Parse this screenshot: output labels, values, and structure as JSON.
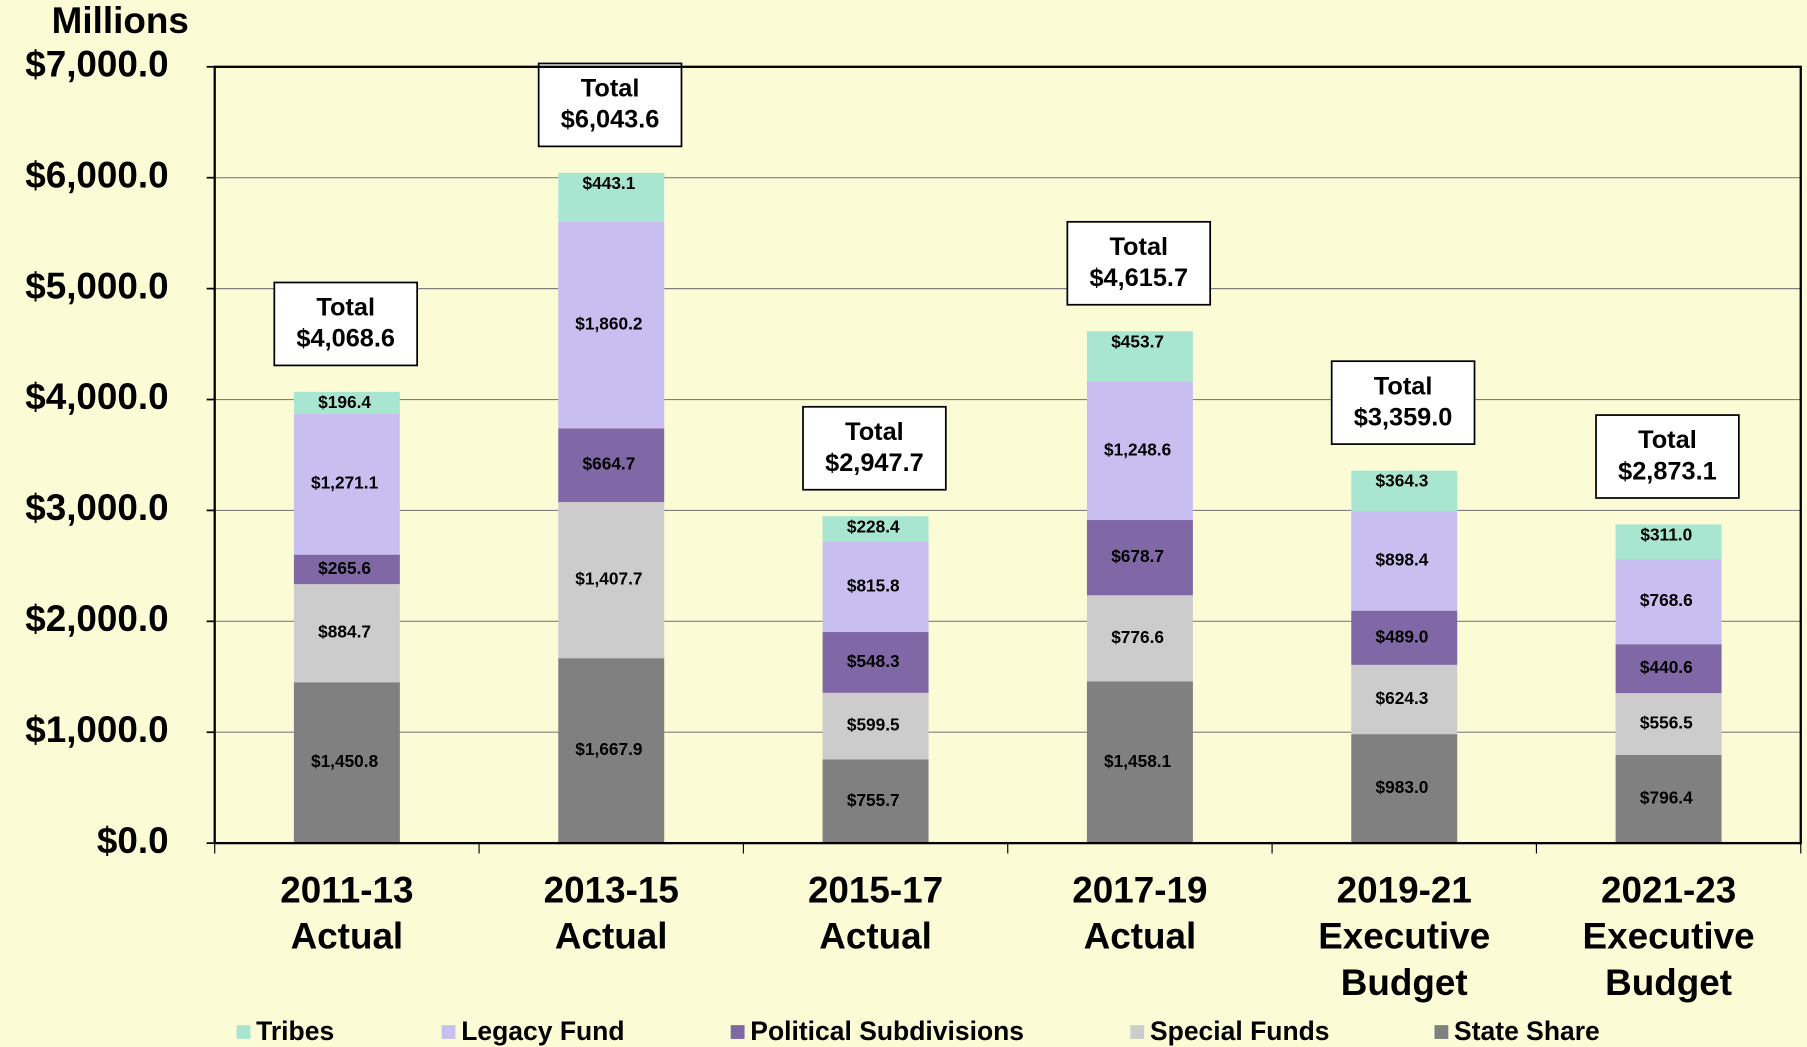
{
  "chart_data": {
    "type": "stacked_bar",
    "ylabel": "Millions",
    "categories": [
      "2011-13 Actual",
      "2013-15 Actual",
      "2015-17 Actual",
      "2017-19 Actual",
      "2019-21 Executive Budget",
      "2021-23 Executive Budget"
    ],
    "series": [
      {
        "name": "Tribes",
        "color": "#a9e6d2",
        "values": [
          196.4,
          443.1,
          228.4,
          453.7,
          364.3,
          311.0
        ],
        "value_labels": [
          "$196.4",
          "$443.1",
          "$228.4",
          "$453.7",
          "$364.3",
          "$311.0"
        ]
      },
      {
        "name": "Legacy Fund",
        "color": "#c8bff0",
        "values": [
          1271.1,
          1860.2,
          815.8,
          1248.6,
          898.4,
          768.6
        ],
        "value_labels": [
          "$1,271.1",
          "$1,860.2",
          "$815.8",
          "$1,248.6",
          "$898.4",
          "$768.6"
        ]
      },
      {
        "name": "Political Subdivisions",
        "color": "#8068a6",
        "values": [
          265.6,
          664.7,
          548.3,
          678.7,
          489.0,
          440.6
        ],
        "value_labels": [
          "$265.6",
          "$664.7",
          "$548.3",
          "$678.7",
          "$489.0",
          "$440.6"
        ]
      },
      {
        "name": "Special Funds",
        "color": "#cccccc",
        "values": [
          884.7,
          1407.7,
          599.5,
          776.6,
          624.3,
          556.5
        ],
        "value_labels": [
          "$884.7",
          "$1,407.7",
          "$599.5",
          "$776.6",
          "$624.3",
          "$556.5"
        ]
      },
      {
        "name": "State Share",
        "color": "#808080",
        "values": [
          1450.8,
          1667.9,
          755.7,
          1458.1,
          983.0,
          796.4
        ],
        "value_labels": [
          "$1,450.8",
          "$1,667.9",
          "$755.7",
          "$1,458.1",
          "$983.0",
          "$796.4"
        ]
      }
    ],
    "total_title": "Total",
    "totals": [
      4068.6,
      6043.6,
      2947.7,
      4615.7,
      3359.0,
      2873.1
    ],
    "total_labels": [
      "$4,068.6",
      "$6,043.6",
      "$2,947.7",
      "$4,615.7",
      "$3,359.0",
      "$2,873.1"
    ],
    "ylim": [
      0,
      7000
    ],
    "yticks": [
      {
        "value": 0,
        "label": "$0.0"
      },
      {
        "value": 1000,
        "label": "$1,000.0"
      },
      {
        "value": 2000,
        "label": "$2,000.0"
      },
      {
        "value": 3000,
        "label": "$3,000.0"
      },
      {
        "value": 4000,
        "label": "$4,000.0"
      },
      {
        "value": 5000,
        "label": "$5,000.0"
      },
      {
        "value": 6000,
        "label": "$6,000.0"
      },
      {
        "value": 7000,
        "label": "$7,000.0"
      }
    ],
    "grid": true,
    "legend": "bottom"
  }
}
